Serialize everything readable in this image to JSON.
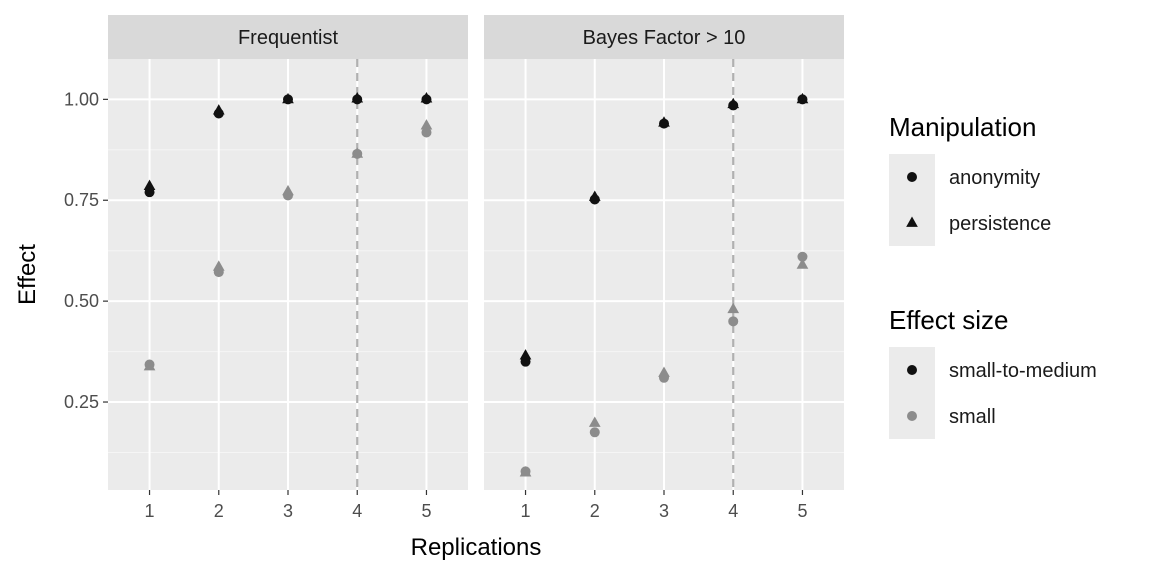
{
  "chart_data": {
    "type": "scatter",
    "xlabel": "Replications",
    "ylabel": "Effect",
    "x_ticks": [
      1,
      2,
      3,
      4,
      5
    ],
    "y_ticks": [
      0.25,
      0.5,
      0.75,
      1.0
    ],
    "y_tick_labels": [
      "0.25",
      "0.50",
      "0.75",
      "1.00"
    ],
    "xlim": [
      0.4,
      5.6
    ],
    "ylim": [
      0.032,
      1.1
    ],
    "grid": true,
    "legend_position": "right",
    "colors": {
      "small-to-medium": "#111111",
      "small": "#8c8c8c",
      "reference_line": "#b0b0b0"
    },
    "legends": [
      {
        "title": "Manipulation",
        "entries": [
          {
            "label": "anonymity",
            "shape": "circle"
          },
          {
            "label": "persistence",
            "shape": "triangle"
          }
        ]
      },
      {
        "title": "Effect size",
        "entries": [
          {
            "label": "small-to-medium",
            "shape": "circle",
            "color": "#111111"
          },
          {
            "label": "small",
            "shape": "circle",
            "color": "#8c8c8c"
          }
        ]
      }
    ],
    "panels": [
      {
        "title": "Frequentist",
        "reference_x": 4,
        "series": [
          {
            "manipulation": "anonymity",
            "effect_size": "small-to-medium",
            "x": [
              1,
              2,
              3,
              4,
              5
            ],
            "y": [
              0.77,
              0.965,
              1.0,
              1.0,
              1.0
            ]
          },
          {
            "manipulation": "persistence",
            "effect_size": "small-to-medium",
            "x": [
              1,
              2,
              3,
              4,
              5
            ],
            "y": [
              0.785,
              0.972,
              1.0,
              1.002,
              1.002
            ]
          },
          {
            "manipulation": "anonymity",
            "effect_size": "small",
            "x": [
              1,
              2,
              3,
              4,
              5
            ],
            "y": [
              0.343,
              0.572,
              0.762,
              0.865,
              0.918
            ]
          },
          {
            "manipulation": "persistence",
            "effect_size": "small",
            "x": [
              1,
              2,
              3,
              4,
              5
            ],
            "y": [
              0.338,
              0.585,
              0.772,
              0.865,
              0.935
            ]
          }
        ]
      },
      {
        "title": "Bayes Factor > 10",
        "reference_x": 4,
        "series": [
          {
            "manipulation": "anonymity",
            "effect_size": "small-to-medium",
            "x": [
              1,
              2,
              3,
              4,
              5
            ],
            "y": [
              0.35,
              0.752,
              0.94,
              0.985,
              1.0
            ]
          },
          {
            "manipulation": "persistence",
            "effect_size": "small-to-medium",
            "x": [
              1,
              2,
              3,
              4,
              5
            ],
            "y": [
              0.365,
              0.758,
              0.942,
              0.988,
              1.0
            ]
          },
          {
            "manipulation": "anonymity",
            "effect_size": "small",
            "x": [
              1,
              2,
              3,
              4,
              5
            ],
            "y": [
              0.078,
              0.175,
              0.31,
              0.45,
              0.61
            ]
          },
          {
            "manipulation": "persistence",
            "effect_size": "small",
            "x": [
              1,
              2,
              3,
              4,
              5
            ],
            "y": [
              0.075,
              0.198,
              0.322,
              0.48,
              0.59
            ]
          }
        ]
      }
    ]
  }
}
